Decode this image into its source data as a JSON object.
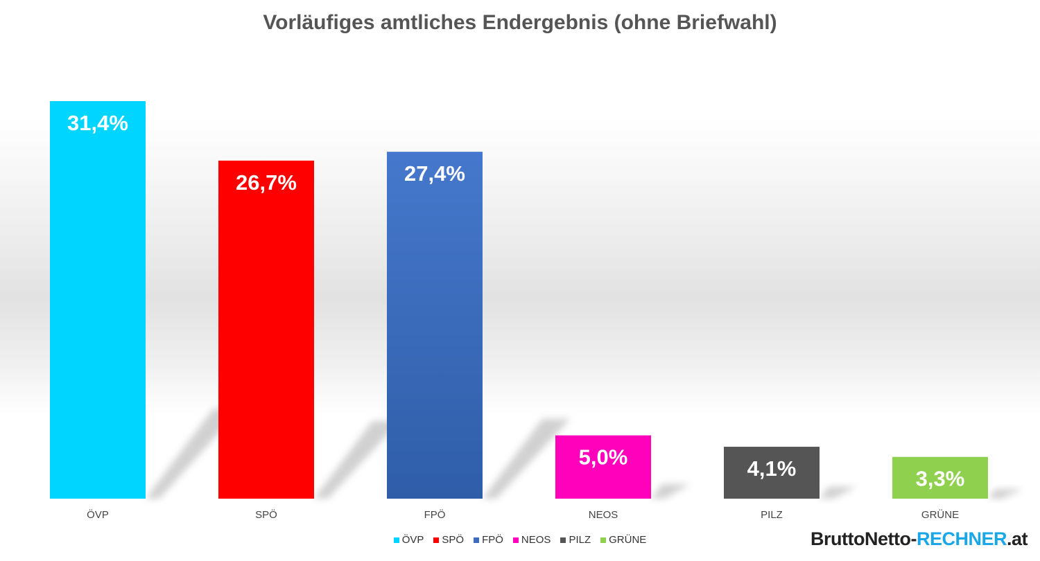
{
  "colors": {
    "ÖVP": "#00d5ff",
    "SPÖ": "#ff0000",
    "FPÖ": "#3a6dc0",
    "NEOS": "#ff00bb",
    "PILZ": "#555555",
    "GRÜNE": "#8fd14f"
  },
  "chart_data": {
    "type": "bar",
    "title": "Vorläufiges amtliches Endergebnis (ohne Briefwahl)",
    "categories": [
      "ÖVP",
      "SPÖ",
      "FPÖ",
      "NEOS",
      "PILZ",
      "GRÜNE"
    ],
    "values": [
      31.4,
      26.7,
      27.4,
      5.0,
      4.1,
      3.3
    ],
    "data_labels": [
      "31,4%",
      "26,7%",
      "27,4%",
      "5,0%",
      "4,1%",
      "3,3%"
    ],
    "unit": "%",
    "xlabel": "",
    "ylabel": "",
    "ylim": [
      0,
      31.4
    ],
    "grid": false,
    "legend": {
      "position": "bottom",
      "entries": [
        "ÖVP",
        "SPÖ",
        "FPÖ",
        "NEOS",
        "PILZ",
        "GRÜNE"
      ]
    }
  },
  "branding": {
    "part1": "BruttoNetto-",
    "part2": "RECHNER",
    "part3": ".at"
  }
}
